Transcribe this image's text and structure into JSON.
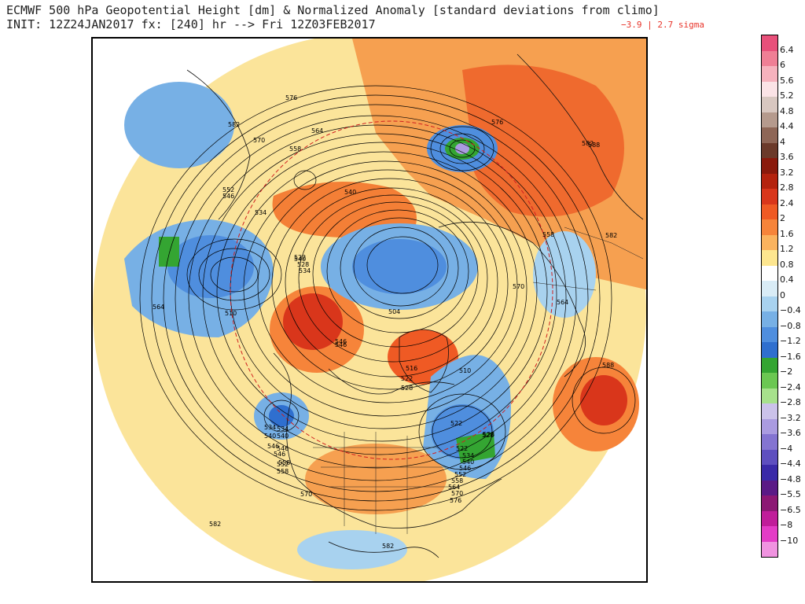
{
  "header": {
    "line1": "ECMWF 500 hPa Geopotential Height [dm] & Normalized Anomaly [standard deviations from climo]",
    "line2": "INIT: 12Z24JAN2017 fx: [240] hr --> Fri 12Z03FEB2017",
    "sigma_range": "−3.9 | 2.7 sigma"
  },
  "legend": {
    "colors": [
      "#e8507a",
      "#ef7f95",
      "#f6b2bd",
      "#fbe3e6",
      "#d8c7c0",
      "#b59a8d",
      "#8e6656",
      "#6b3a2a",
      "#8a1a0c",
      "#b4230e",
      "#d9361b",
      "#ef5a24",
      "#f6843a",
      "#fab35e",
      "#fde68f",
      "#ffffff",
      "#d9ecf6",
      "#a8d2ef",
      "#77b0e5",
      "#4f8ede",
      "#2f6fcf",
      "#34a532",
      "#6bc752",
      "#a7e18c",
      "#cbc2ea",
      "#aa9be0",
      "#8474d1",
      "#5e4fbf",
      "#3a2aa8",
      "#5a1a86",
      "#8c1874",
      "#c01d9a",
      "#e33cc6",
      "#f093e0"
    ],
    "labels": [
      "6.4",
      "6",
      "5.6",
      "5.2",
      "4.8",
      "4.4",
      "4",
      "3.6",
      "3.2",
      "2.8",
      "2.4",
      "2",
      "1.6",
      "1.2",
      "0.8",
      "0.4",
      "0",
      "−0.4",
      "−0.8",
      "−1.2",
      "−1.6",
      "−2",
      "−2.4",
      "−2.8",
      "−3.2",
      "−3.6",
      "−4",
      "−4.4",
      "−4.8",
      "−5.5",
      "−6.5",
      "−8",
      "−10"
    ]
  },
  "map": {
    "contour_labels": [
      "576",
      "582",
      "564",
      "558",
      "570",
      "576",
      "582",
      "534",
      "546",
      "552",
      "540",
      "528",
      "522",
      "546",
      "510",
      "504",
      "564",
      "534",
      "522",
      "528",
      "534",
      "540",
      "546",
      "516",
      "522",
      "528",
      "510",
      "528",
      "522",
      "534",
      "540",
      "546",
      "552",
      "558",
      "564",
      "570",
      "576",
      "558",
      "582",
      "564",
      "570",
      "588",
      "582",
      "588",
      "582",
      "534",
      "540",
      "546",
      "552",
      "558",
      "546",
      "540",
      "546",
      "558",
      "570"
    ]
  }
}
